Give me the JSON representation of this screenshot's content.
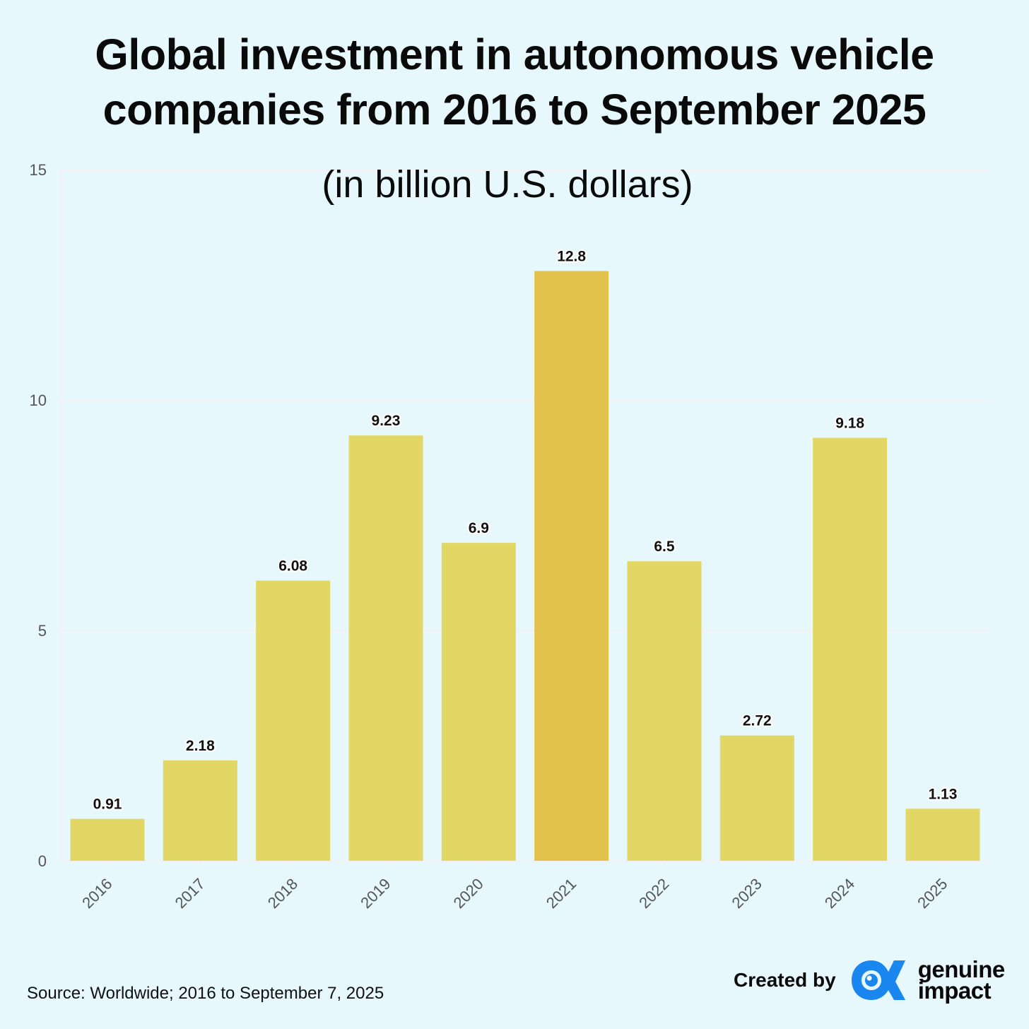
{
  "header": {
    "title_line1": "Global investment in autonomous vehicle",
    "title_line2": "companies from 2016 to September 2025",
    "subtitle": "(in billion U.S. dollars)"
  },
  "chart_data": {
    "type": "bar",
    "title": "Global investment in autonomous vehicle companies from 2016 to September 2025",
    "subtitle": "(in billion U.S. dollars)",
    "xlabel": "",
    "ylabel": "",
    "categories": [
      "2016",
      "2017",
      "2018",
      "2019",
      "2020",
      "2021",
      "2022",
      "2023",
      "2024",
      "2025"
    ],
    "values": [
      0.91,
      2.18,
      6.08,
      9.23,
      6.9,
      12.8,
      6.5,
      2.72,
      9.18,
      1.13
    ],
    "value_labels": [
      "0.91",
      "2.18",
      "6.08",
      "9.23",
      "6.9",
      "12.8",
      "6.5",
      "2.72",
      "9.18",
      "1.13"
    ],
    "highlight_index": 5,
    "ylim": [
      0,
      15
    ],
    "yticks": [
      0,
      5,
      10,
      15
    ],
    "grid": true,
    "colors": {
      "bar": "#e2d765",
      "highlight": "#e2c24d",
      "grid": "#f5eef3",
      "tick_text": "#555555"
    }
  },
  "footer": {
    "source": "Source: Worldwide; 2016 to September 7, 2025",
    "created_by": "Created by",
    "brand_line1": "genuine",
    "brand_line2": "impact",
    "brand_color": "#1a86f0"
  }
}
